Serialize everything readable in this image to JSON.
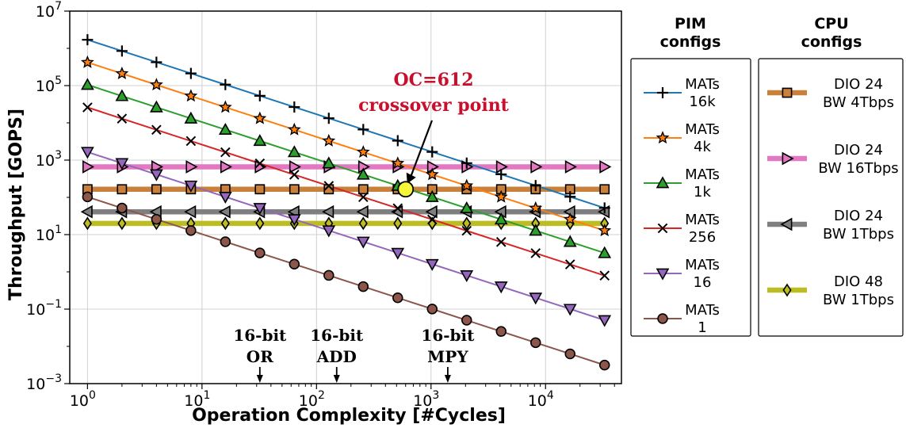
{
  "chart_data": {
    "type": "line",
    "xscale": "log",
    "yscale": "log",
    "xlabel": "Operation Complexity [#Cycles]",
    "ylabel": "Throughput [GOPS]",
    "xlim": [
      0.7,
      46000
    ],
    "ylim": [
      0.001,
      10000000
    ],
    "grid": true,
    "x": [
      1,
      2,
      4,
      8,
      16,
      32,
      64,
      128,
      256,
      512,
      1024,
      2048,
      4096,
      8192,
      16384,
      32768
    ],
    "x_ticks": [
      {
        "base": "10",
        "exp": "0"
      },
      {
        "base": "10",
        "exp": "1"
      },
      {
        "base": "10",
        "exp": "2"
      },
      {
        "base": "10",
        "exp": "3"
      },
      {
        "base": "10",
        "exp": "4"
      }
    ],
    "y_ticks": [
      {
        "base": "10",
        "exp": "−3"
      },
      {
        "base": "10",
        "exp": "−1"
      },
      {
        "base": "10",
        "exp": "1"
      },
      {
        "base": "10",
        "exp": "3"
      },
      {
        "base": "10",
        "exp": "5"
      },
      {
        "base": "10",
        "exp": "7"
      }
    ],
    "pim_series": [
      {
        "label1": "MATs",
        "label2": "16k",
        "color": "#1f77b4",
        "marker": "plus",
        "y_at_x1": 1700000
      },
      {
        "label1": "MATs",
        "label2": "4k",
        "color": "#ff7f0e",
        "marker": "star",
        "y_at_x1": 420000
      },
      {
        "label1": "MATs",
        "label2": "1k",
        "color": "#2ca02c",
        "marker": "triangle-up",
        "y_at_x1": 105000
      },
      {
        "label1": "MATs",
        "label2": "256",
        "color": "#d62728",
        "marker": "x",
        "y_at_x1": 26000
      },
      {
        "label1": "MATs",
        "label2": "16",
        "color": "#9467bd",
        "marker": "triangle-down",
        "y_at_x1": 1650
      },
      {
        "label1": "MATs",
        "label2": "1",
        "color": "#8c564b",
        "marker": "circle",
        "y_at_x1": 103
      }
    ],
    "cpu_series": [
      {
        "label1": "DIO 24",
        "label2": "BW 4Tbps",
        "color": "#c8803a",
        "marker": "square",
        "value": 165
      },
      {
        "label1": "DIO 24",
        "label2": "BW 16Tbps",
        "color": "#e377c2",
        "marker": "triangle-right",
        "value": 660
      },
      {
        "label1": "DIO 24",
        "label2": "BW 1Tbps",
        "color": "#7f7f7f",
        "marker": "triangle-left",
        "value": 41
      },
      {
        "label1": "DIO 48",
        "label2": "BW 1Tbps",
        "color": "#bcbd22",
        "marker": "diamond",
        "value": 20
      }
    ],
    "legend_pim_title": [
      "PIM",
      "configs"
    ],
    "legend_cpu_title": [
      "CPU",
      "configs"
    ],
    "crossover": {
      "x": 600,
      "y": 165,
      "label1": "OC=612",
      "label2": "crossover point",
      "color": "#f5f53a"
    },
    "op_annotations": [
      {
        "x": 32,
        "line1": "16-bit",
        "line2": "OR"
      },
      {
        "x": 150,
        "line1": "16-bit",
        "line2": "ADD"
      },
      {
        "x": 1400,
        "line1": "16-bit",
        "line2": "MPY"
      }
    ]
  }
}
